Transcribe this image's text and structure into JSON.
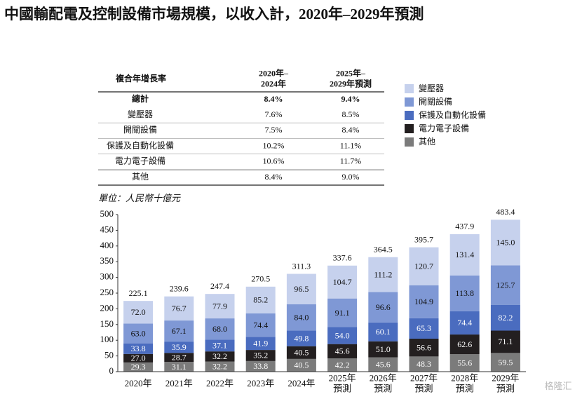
{
  "title": "中國輸配電及控制設備市場規模，以收入計，2020年–2029年預測",
  "table": {
    "header": [
      "複合年增長率",
      "2020年–\n2024年",
      "2025年–\n2029年預測"
    ],
    "rows": [
      [
        "總計",
        "8.4%",
        "9.4%"
      ],
      [
        "變壓器",
        "7.6%",
        "8.5%"
      ],
      [
        "開關設備",
        "7.5%",
        "8.4%"
      ],
      [
        "保護及自動化設備",
        "10.2%",
        "11.1%"
      ],
      [
        "電力電子設備",
        "10.6%",
        "11.7%"
      ],
      [
        "其他",
        "8.4%",
        "9.0%"
      ]
    ]
  },
  "watermark": "格隆汇",
  "chart_data": {
    "type": "stacked_bar",
    "unit_label": "單位：人民幣十億元",
    "categories": [
      "2020年",
      "2021年",
      "2022年",
      "2023年",
      "2024年",
      "2025年\n預測",
      "2026年\n預測",
      "2027年\n預測",
      "2028年\n預測",
      "2029年\n預測"
    ],
    "series": [
      {
        "name": "其他",
        "color": "#7b7b7b",
        "values": [
          29.3,
          31.1,
          32.2,
          33.8,
          40.5,
          42.2,
          45.6,
          48.3,
          55.6,
          59.5
        ],
        "value_labels": [
          "29.3",
          "31.1",
          "32.2",
          "33.8",
          "40.5",
          "42.2",
          "45.6",
          "48.3",
          "55.6",
          "59.5"
        ]
      },
      {
        "name": "電力電子設備",
        "color": "#231f20",
        "values": [
          27.0,
          28.7,
          32.2,
          35.2,
          40.5,
          45.6,
          51.0,
          56.6,
          62.6,
          71.1
        ],
        "value_labels": [
          "27.0",
          "28.7",
          "32.2",
          "35.2",
          "40.5",
          "45.6",
          "51.0",
          "56.6",
          "62.6",
          "71.1"
        ]
      },
      {
        "name": "保護及自動化設備",
        "color": "#4a6cbf",
        "values": [
          33.8,
          35.9,
          37.1,
          41.9,
          49.8,
          54.0,
          60.1,
          65.3,
          74.4,
          82.2
        ],
        "value_labels": [
          "33.8",
          "35.9",
          "37.1",
          "41.9",
          "49.8",
          "54.0",
          "60.1",
          "65.3",
          "74.4",
          "82.2"
        ]
      },
      {
        "name": "開關設備",
        "color": "#7f98d5",
        "values": [
          63.0,
          67.1,
          68.0,
          74.4,
          84.0,
          91.1,
          96.6,
          104.9,
          113.8,
          125.7
        ],
        "value_labels": [
          "63.0",
          "67.1",
          "68.0",
          "74.4",
          "84.0",
          "91.1",
          "96.6",
          "104.9",
          "113.8",
          "125.7"
        ]
      },
      {
        "name": "變壓器",
        "color": "#c6d1ed",
        "values": [
          72.0,
          76.7,
          77.9,
          85.2,
          96.5,
          104.7,
          111.2,
          120.7,
          131.4,
          145.0
        ],
        "value_labels": [
          "72.0",
          "76.7",
          "77.9",
          "85.2",
          "96.5",
          "104.7",
          "111.2",
          "120.7",
          "131.4",
          "145.0"
        ]
      }
    ],
    "totals": [
      225.1,
      239.6,
      247.4,
      270.5,
      311.3,
      337.6,
      364.5,
      395.7,
      437.9,
      483.4
    ],
    "ylim": [
      0,
      500
    ],
    "yticks": [
      0,
      50,
      100,
      150,
      200,
      250,
      300,
      350,
      400,
      450,
      500
    ]
  }
}
